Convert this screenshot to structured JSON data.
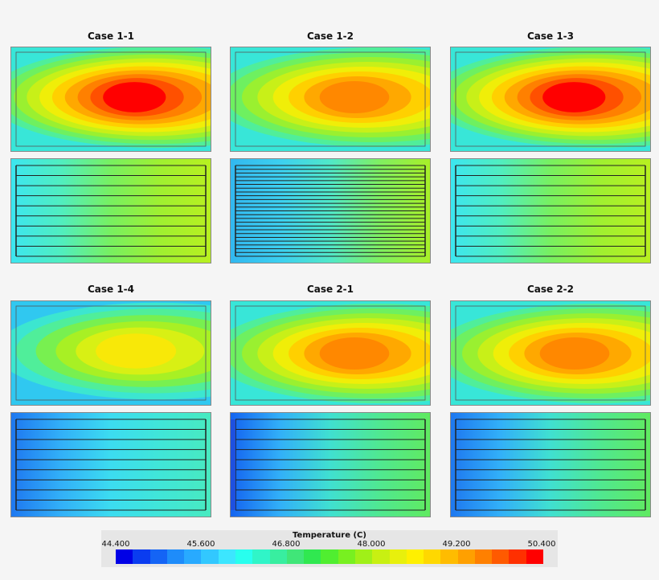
{
  "cases": [
    {
      "title": "Case 1-1"
    },
    {
      "title": "Case 1-2"
    },
    {
      "title": "Case 1-3"
    },
    {
      "title": "Case 1-4"
    },
    {
      "title": "Case 2-1"
    },
    {
      "title": "Case 2-2"
    }
  ],
  "legend": {
    "title": "Temperature (C)",
    "ticks": [
      "44.400",
      "45.600",
      "46.800",
      "48.000",
      "49.200",
      "50.400"
    ],
    "colors": [
      "#0000e6",
      "#0a3cf0",
      "#1464f5",
      "#1e8cfa",
      "#28aaff",
      "#32c8ff",
      "#3ce6ff",
      "#28ffee",
      "#30f5c8",
      "#38eea0",
      "#40e678",
      "#30e850",
      "#50ee30",
      "#78f020",
      "#a0f018",
      "#c8f012",
      "#e8f00c",
      "#fff000",
      "#ffd800",
      "#ffbc00",
      "#ffa000",
      "#ff8000",
      "#ff5a00",
      "#ff3000",
      "#ff0000"
    ]
  }
}
